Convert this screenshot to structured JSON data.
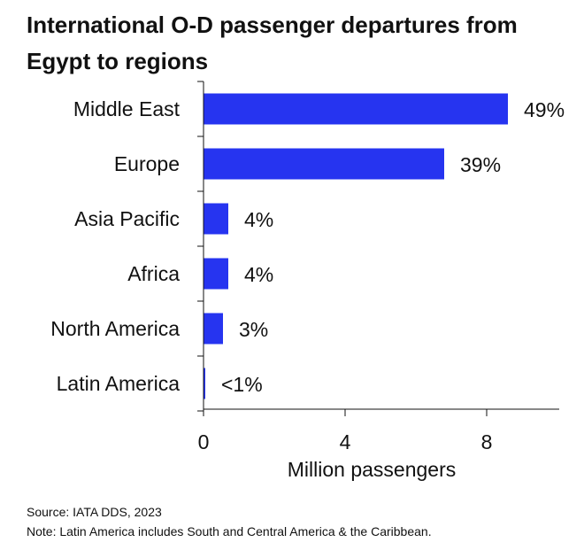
{
  "chart_data": {
    "type": "bar",
    "orientation": "horizontal",
    "title": "International O-D passenger departures from Egypt to regions",
    "xlabel": "Million passengers",
    "ylabel": "",
    "xlim": [
      0,
      10
    ],
    "xticks": [
      0,
      4,
      8
    ],
    "grid": false,
    "categories": [
      "Middle East",
      "Europe",
      "Asia Pacific",
      "Africa",
      "North America",
      "Latin America"
    ],
    "values": [
      8.6,
      6.8,
      0.7,
      0.7,
      0.55,
      0.05
    ],
    "data_labels": [
      "49%",
      "39%",
      "4%",
      "4%",
      "3%",
      "<1%"
    ],
    "bar_color": "#2634f0"
  },
  "footer": {
    "source": "Source: IATA DDS, 2023",
    "note": "Note: Latin America includes South and Central America & the Caribbean."
  }
}
